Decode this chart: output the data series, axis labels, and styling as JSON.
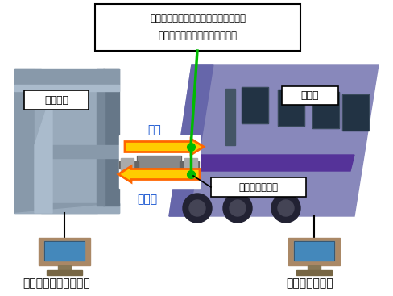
{
  "callout_text_line1": "実車両・仮想車両（シミュレーター）",
  "callout_text_line2": "ともに車体間力の影響を受ける",
  "label_virtual": "仮想車両",
  "label_real": "実車両",
  "label_displacement": "変位",
  "label_force": "発生力",
  "label_actuator": "軌条輪加振装置",
  "label_simulator": "実時間シミュレーター",
  "label_input": "軌道不整を入力",
  "orange_dark": "#FF6600",
  "orange_light": "#FFCC00",
  "green_color": "#00BB00",
  "blue_color": "#0044CC",
  "frame_color1": "#8899AA",
  "frame_color2": "#99AABB",
  "frame_color3": "#667788",
  "train_body": "#8888BB",
  "train_nose": "#6666AA",
  "train_stripe": "#553399",
  "train_window": "#223344",
  "monitor_body": "#AA8866",
  "monitor_screen": "#4488BB",
  "monitor_stand": "#887755"
}
